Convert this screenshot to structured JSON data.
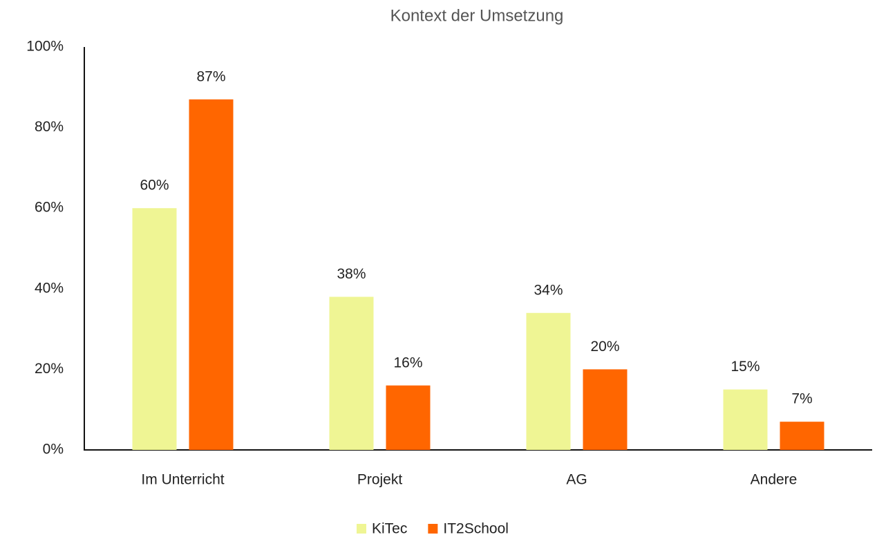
{
  "chart_data": {
    "type": "bar",
    "title": "Kontext der Umsetzung",
    "categories": [
      "Im Unterricht",
      "Projekt",
      "AG",
      "Andere"
    ],
    "series": [
      {
        "name": "KiTec",
        "color": "#eff594",
        "values": [
          60,
          38,
          34,
          15
        ],
        "value_labels": [
          "60%",
          "38%",
          "34%",
          "15%"
        ]
      },
      {
        "name": "IT2School",
        "color": "#ff6600",
        "values": [
          87,
          16,
          20,
          7
        ],
        "value_labels": [
          "87%",
          "16%",
          "20%",
          "7%"
        ]
      }
    ],
    "ylim": [
      0,
      100
    ],
    "yticks": [
      {
        "value": 0,
        "label": "0%"
      },
      {
        "value": 20,
        "label": "20%"
      },
      {
        "value": 40,
        "label": "40%"
      },
      {
        "value": 60,
        "label": "60%"
      },
      {
        "value": 80,
        "label": "80%"
      },
      {
        "value": 100,
        "label": "100%"
      }
    ],
    "grid": false,
    "legend": "bottom"
  }
}
